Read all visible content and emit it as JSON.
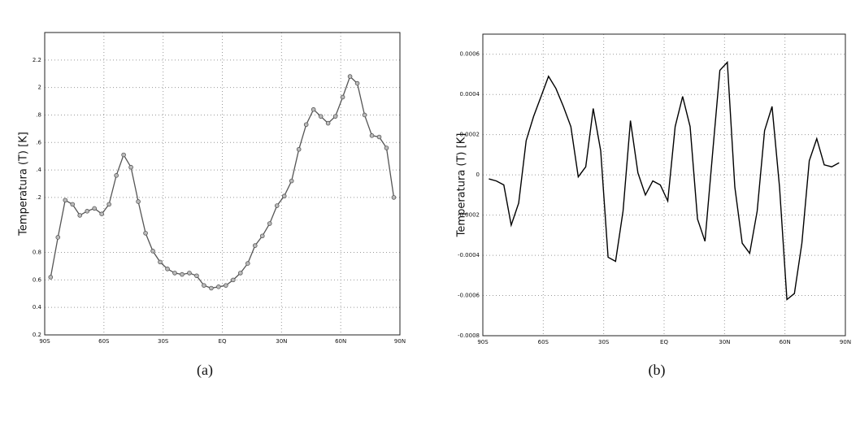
{
  "chart_data": [
    {
      "type": "line",
      "caption": "(a)",
      "ylabel": "Temperatura  (T)  [K]",
      "color": "#555555",
      "marker_color": "#bbbbbb",
      "markers": true,
      "grid": true,
      "x": [
        -87,
        -83.3,
        -79.6,
        -75.9,
        -72.2,
        -68.5,
        -64.8,
        -61.1,
        -57.4,
        -53.7,
        -50,
        -46.3,
        -42.6,
        -38.9,
        -35.2,
        -31.5,
        -27.8,
        -24.1,
        -20.4,
        -16.7,
        -13,
        -9.3,
        -5.6,
        -1.9,
        1.8,
        5.5,
        9.2,
        12.9,
        16.6,
        20.3,
        24,
        27.7,
        31.4,
        35.1,
        38.8,
        42.5,
        46.2,
        49.9,
        53.6,
        57.3,
        61,
        64.7,
        68.4,
        72.1,
        75.8,
        79.5,
        83.2,
        86.9
      ],
      "values": [
        0.62,
        0.91,
        1.18,
        1.15,
        1.07,
        1.1,
        1.12,
        1.08,
        1.15,
        1.36,
        1.51,
        1.42,
        1.17,
        0.94,
        0.81,
        0.73,
        0.68,
        0.65,
        0.64,
        0.65,
        0.63,
        0.56,
        0.54,
        0.55,
        0.56,
        0.6,
        0.65,
        0.72,
        0.85,
        0.92,
        1.01,
        1.14,
        1.21,
        1.32,
        1.55,
        1.73,
        1.84,
        1.79,
        1.74,
        1.79,
        1.93,
        2.08,
        2.03,
        1.8,
        1.65,
        1.64,
        1.56,
        1.2
      ],
      "xlim": [
        -90,
        90
      ],
      "xticks": [
        {
          "value": -90,
          "label": "90S"
        },
        {
          "value": -60,
          "label": "60S"
        },
        {
          "value": -30,
          "label": "30S"
        },
        {
          "value": 0,
          "label": "EQ"
        },
        {
          "value": 30,
          "label": "30N"
        },
        {
          "value": 60,
          "label": "60N"
        },
        {
          "value": 90,
          "label": "90N"
        }
      ],
      "ylim": [
        0.2,
        2.4
      ],
      "yticks": [
        0.2,
        0.4,
        0.6,
        0.8,
        {
          "value": 1.2,
          "label": ".2"
        },
        {
          "value": 1.4,
          "label": ".4"
        },
        {
          "value": 1.6,
          "label": ".6"
        },
        {
          "value": 1.8,
          "label": ".8"
        },
        2,
        2.2
      ]
    },
    {
      "type": "line",
      "caption": "(b)",
      "ylabel": "Temperatura  (T)  [K]",
      "color": "#000000",
      "markers": false,
      "grid": true,
      "x": [
        -87,
        -83.3,
        -79.6,
        -75.9,
        -72.2,
        -68.5,
        -64.8,
        -61.1,
        -57.4,
        -53.7,
        -50,
        -46.3,
        -42.6,
        -38.9,
        -35.2,
        -31.5,
        -27.8,
        -24.1,
        -20.4,
        -16.7,
        -13,
        -9.3,
        -5.6,
        -1.9,
        1.8,
        5.5,
        9.2,
        12.9,
        16.6,
        20.3,
        24,
        27.7,
        31.4,
        35.1,
        38.8,
        42.5,
        46.2,
        49.9,
        53.6,
        57.3,
        61,
        64.7,
        68.4,
        72.1,
        75.8,
        79.5,
        83.2,
        86.9
      ],
      "values": [
        -2e-05,
        -3e-05,
        -5e-05,
        -0.00025,
        -0.00014,
        0.00017,
        0.00029,
        0.00039,
        0.00049,
        0.00043,
        0.00034,
        0.00024,
        -1e-05,
        4e-05,
        0.00033,
        0.00012,
        -0.00041,
        -0.00043,
        -0.00018,
        0.00027,
        1e-05,
        -0.0001,
        -3e-05,
        -5e-05,
        -0.00013,
        0.00024,
        0.00039,
        0.00024,
        -0.00022,
        -0.00033,
        0.0001,
        0.00052,
        0.00056,
        -6e-05,
        -0.00034,
        -0.00039,
        -0.00018,
        0.00022,
        0.00034,
        -6e-05,
        -0.00062,
        -0.00059,
        -0.00034,
        7e-05,
        0.00018,
        5e-05,
        4e-05,
        6e-05
      ],
      "xlim": [
        -90,
        90
      ],
      "xticks": [
        {
          "value": -90,
          "label": "90S"
        },
        {
          "value": -60,
          "label": "60S"
        },
        {
          "value": -30,
          "label": "30S"
        },
        {
          "value": 0,
          "label": "EQ"
        },
        {
          "value": 30,
          "label": "30N"
        },
        {
          "value": 60,
          "label": "60N"
        },
        {
          "value": 90,
          "label": "90N"
        }
      ],
      "ylim": [
        -0.0008,
        0.0007
      ],
      "yticks": [
        -0.0008,
        -0.0006,
        -0.0004,
        -0.0002,
        0,
        0.0002,
        0.0004,
        0.0006
      ]
    }
  ]
}
